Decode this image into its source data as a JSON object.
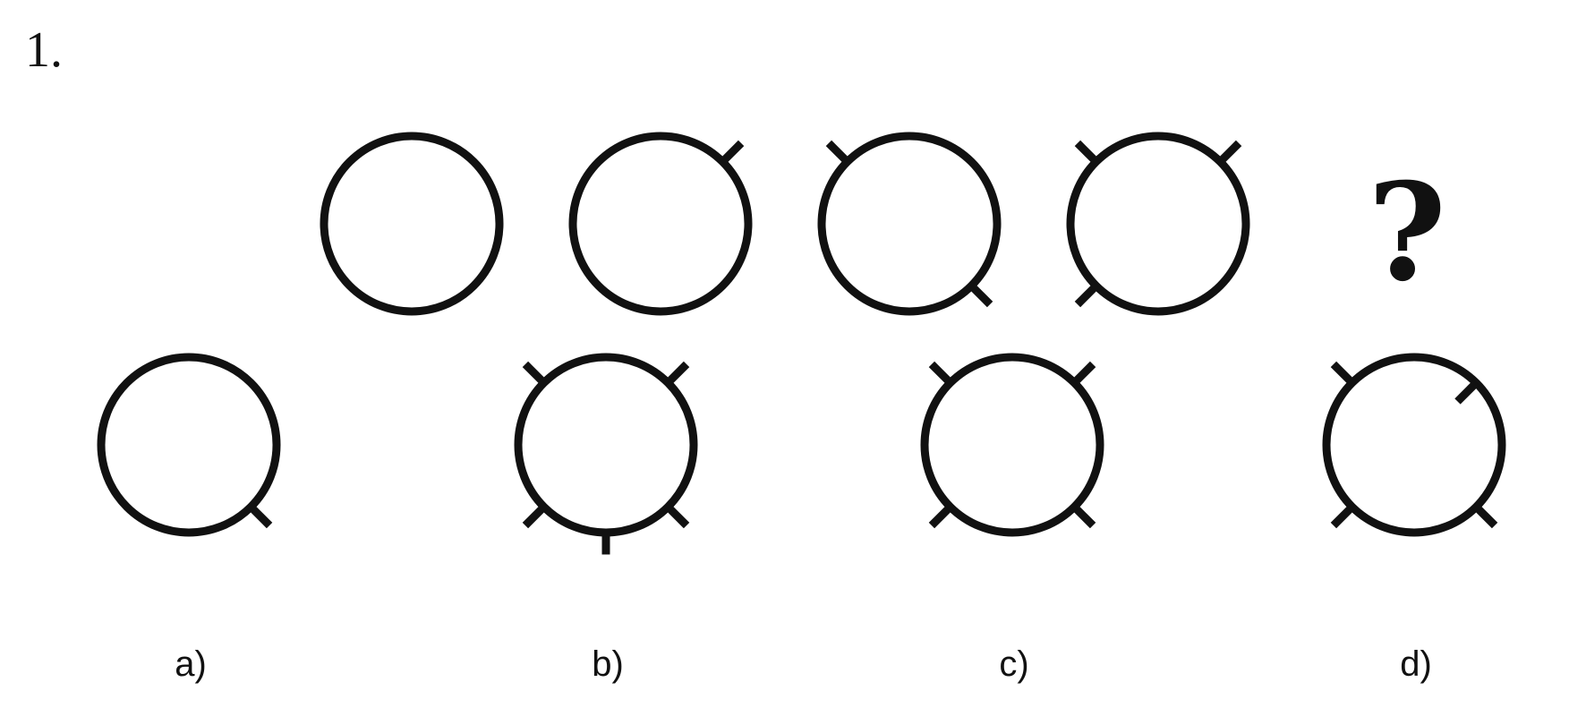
{
  "question": {
    "number": "1."
  },
  "sequence": {
    "items": [
      {
        "ticks": []
      },
      {
        "ticks": [
          "top-right"
        ]
      },
      {
        "ticks": [
          "top-left",
          "bottom-right"
        ]
      },
      {
        "ticks": [
          "top-left",
          "top-right",
          "bottom-left"
        ]
      }
    ],
    "missing_mark": "?"
  },
  "options": [
    {
      "label": "a)",
      "ticks": [
        "bottom-right"
      ]
    },
    {
      "label": "b)",
      "ticks": [
        "top-left",
        "top-right",
        "bottom-left",
        "bottom-right",
        "bottom"
      ]
    },
    {
      "label": "c)",
      "ticks": [
        "top-left",
        "top-right",
        "bottom-left",
        "bottom-right"
      ]
    },
    {
      "label": "d)",
      "ticks": [
        "top-left",
        "top-right-inward",
        "bottom-left",
        "bottom-right"
      ]
    }
  ],
  "style": {
    "stroke_color": "#111111"
  }
}
